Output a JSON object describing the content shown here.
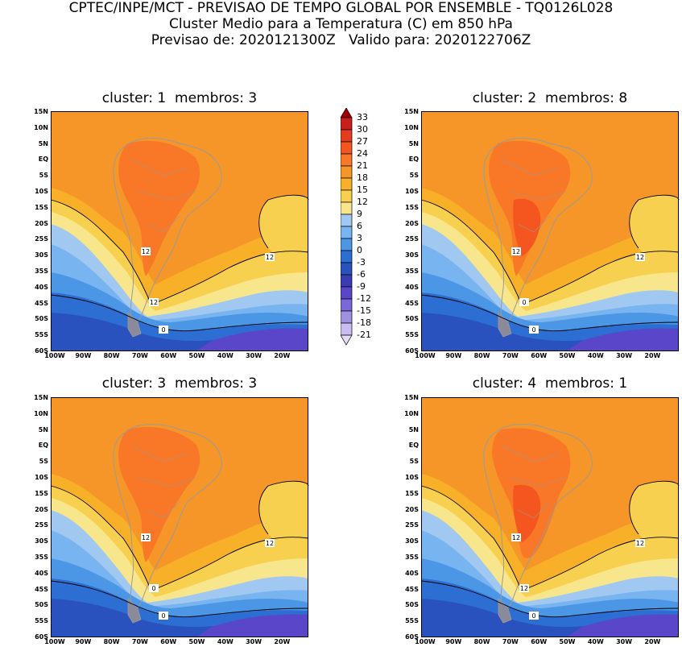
{
  "header": {
    "line1": "CPTEC/INPE/MCT - PREVISAO DE TEMPO GLOBAL POR ENSEMBLE - TQ0126L028",
    "line2": "Cluster Medio para a Temperatura (C) em 850 hPa",
    "line3": "Previsao de: 2020121300Z   Valido para: 2020122706Z"
  },
  "panels": [
    {
      "title": "cluster: 1  membros: 3",
      "contour_labels": [
        "12",
        "12",
        "12",
        "0"
      ]
    },
    {
      "title": "cluster: 2  membros: 8",
      "contour_labels": [
        "12",
        "12",
        "0",
        "0"
      ]
    },
    {
      "title": "cluster: 3  membros: 3",
      "contour_labels": [
        "12",
        "12",
        "0",
        "0"
      ]
    },
    {
      "title": "cluster: 4  membros: 1",
      "contour_labels": [
        "12",
        "12",
        "12",
        "0"
      ]
    }
  ],
  "axes": {
    "lat_labels": [
      "15N",
      "10N",
      "5N",
      "EQ",
      "5S",
      "10S",
      "15S",
      "20S",
      "25S",
      "30S",
      "35S",
      "40S",
      "45S",
      "50S",
      "55S",
      "60S"
    ],
    "lon_labels": [
      "100W",
      "90W",
      "80W",
      "70W",
      "60W",
      "50W",
      "40W",
      "30W",
      "20W"
    ]
  },
  "colorbar": {
    "labels": [
      "33",
      "30",
      "27",
      "24",
      "21",
      "18",
      "15",
      "12",
      "9",
      "6",
      "3",
      "0",
      "-3",
      "-6",
      "-9",
      "-12",
      "-15",
      "-18",
      "-21"
    ],
    "colors": [
      "#a00000",
      "#c81e1e",
      "#e63c1e",
      "#f5551e",
      "#f87828",
      "#f69628",
      "#f8b028",
      "#f8d050",
      "#f8e68c",
      "#a0c8f0",
      "#78b4f0",
      "#4c96e6",
      "#2c6ed2",
      "#2a52be",
      "#3a3cb4",
      "#5a46c8",
      "#7a68d8",
      "#a090e0",
      "#c8bcf0",
      "#e4dcf8"
    ]
  },
  "map": {
    "land_outline_color": "#9a9a9a",
    "contour_color": "#000000"
  }
}
